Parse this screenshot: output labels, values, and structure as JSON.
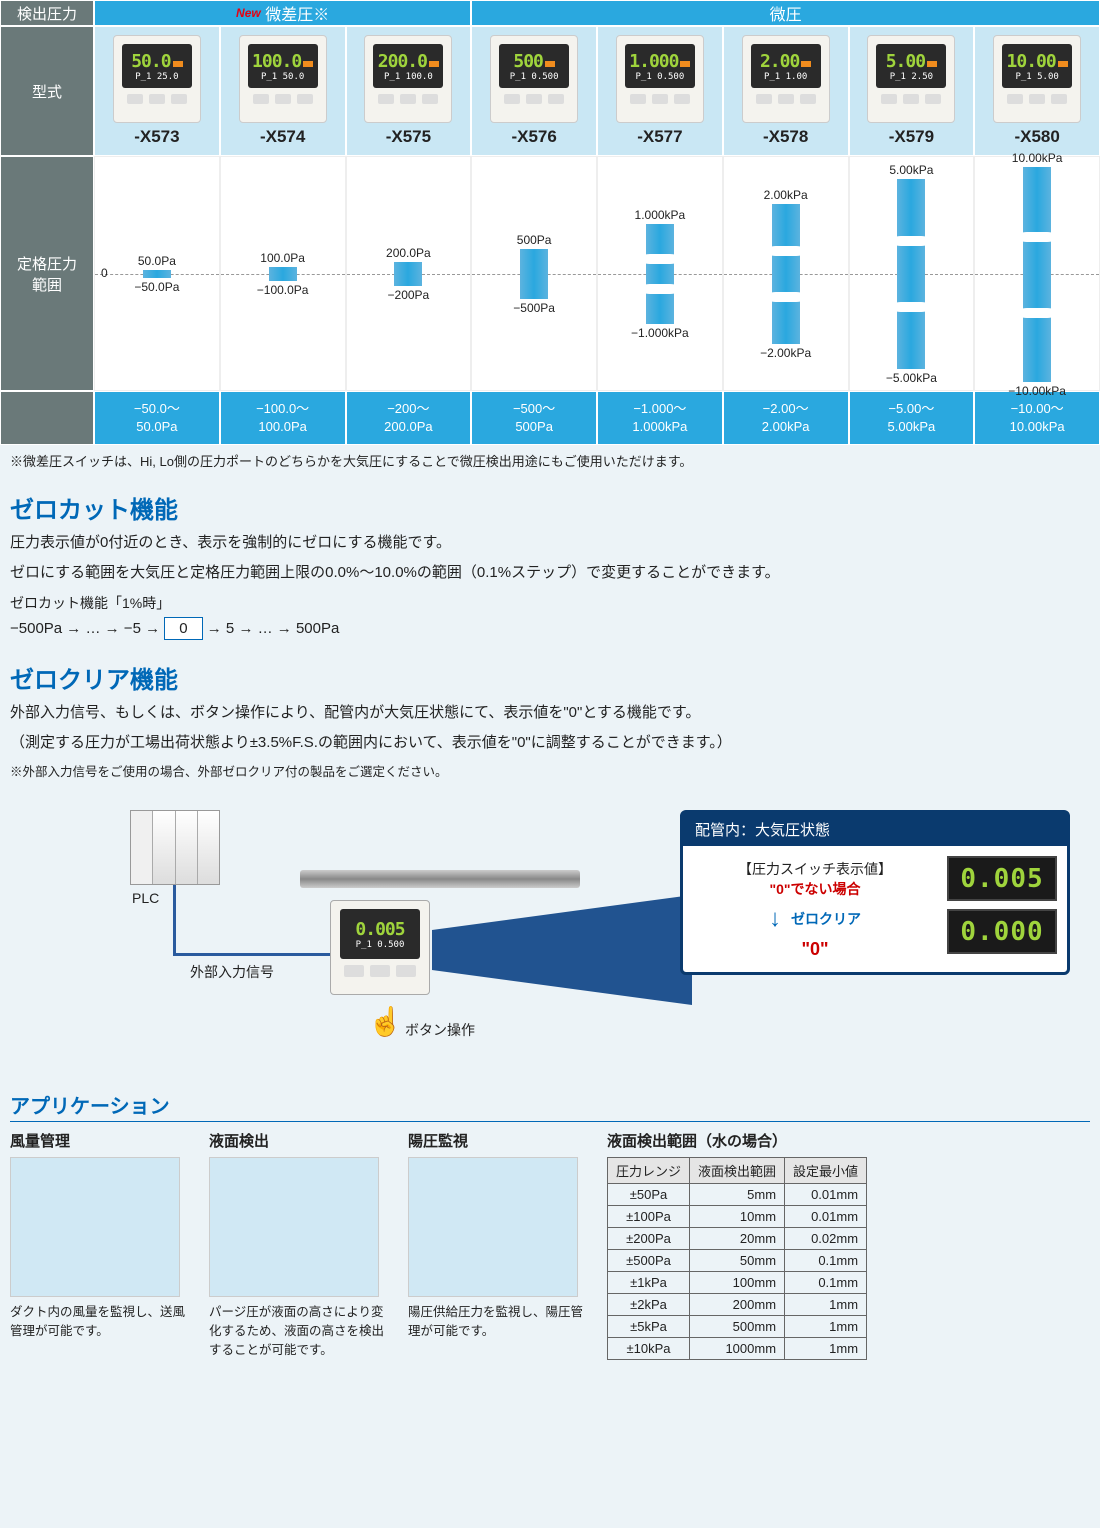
{
  "table": {
    "header_detect": "検出圧力",
    "header_diff": "微差圧※",
    "new_label": "New",
    "header_micro": "微圧",
    "header_model": "型式",
    "header_range": "定格圧力\n範囲",
    "zero_marker": "0",
    "models": [
      {
        "id": "-X573",
        "disp": "50.0",
        "sub": "P_1  25.0",
        "pos": "50.0Pa",
        "neg": "−50.0Pa",
        "bh": 8,
        "bt": 113,
        "rng1": "−50.0～",
        "rng2": "50.0Pa"
      },
      {
        "id": "-X574",
        "disp": "100.0",
        "sub": "P_1  50.0",
        "pos": "100.0Pa",
        "neg": "−100.0Pa",
        "bh": 14,
        "bt": 110,
        "rng1": "−100.0～",
        "rng2": "100.0Pa"
      },
      {
        "id": "-X575",
        "disp": "200.0",
        "sub": "P_1 100.0",
        "pos": "200.0Pa",
        "neg": "−200Pa",
        "bh": 24,
        "bt": 105,
        "rng1": "−200～",
        "rng2": "200.0Pa"
      },
      {
        "id": "-X576",
        "disp": "500",
        "sub": "P_1 0.500",
        "pos": "500Pa",
        "neg": "−500Pa",
        "bh": 50,
        "bt": 92,
        "rng1": "−500～",
        "rng2": "500Pa"
      },
      {
        "id": "-X577",
        "disp": "1.000",
        "sub": "P_1 0.500",
        "pos": "1.000kPa",
        "neg": "−1.000kPa",
        "bh": 100,
        "bt": 67,
        "rng1": "−1.000～",
        "rng2": "1.000kPa",
        "break": true
      },
      {
        "id": "-X578",
        "disp": "2.00",
        "sub": "P_1  1.00",
        "pos": "2.00kPa",
        "neg": "−2.00kPa",
        "bh": 140,
        "bt": 47,
        "rng1": "−2.00～",
        "rng2": "2.00kPa",
        "break": true
      },
      {
        "id": "-X579",
        "disp": "5.00",
        "sub": "P_1  2.50",
        "pos": "5.00kPa",
        "neg": "−5.00kPa",
        "bh": 190,
        "bt": 22,
        "rng1": "−5.00～",
        "rng2": "5.00kPa",
        "break": true
      },
      {
        "id": "-X580",
        "disp": "10.00",
        "sub": "P_1  5.00",
        "pos": "10.00kPa",
        "neg": "−10.00kPa",
        "bh": 215,
        "bt": 10,
        "rng1": "−10.00～",
        "rng2": "10.00kPa",
        "break": true
      }
    ],
    "footnote": "※微差圧スイッチは、Hi, Lo側の圧力ポートのどちらかを大気圧にすることで微圧検出用途にもご使用いただけます。"
  },
  "zero_cut": {
    "title": "ゼロカット機能",
    "p1": "圧力表示値が0付近のとき、表示を強制的にゼロにする機能です。",
    "p2": "ゼロにする範囲を大気圧と定格圧力範囲上限の0.0%～10.0%の範囲（0.1%ステップ）で変更することができます。",
    "ex_label": "ゼロカット機能「1%時」",
    "ex_l": "−500Pa → … → −5 → ",
    "ex_0": "0",
    "ex_r": " → 5 → … → 500Pa"
  },
  "zero_clear": {
    "title": "ゼロクリア機能",
    "p1": "外部入力信号、もしくは、ボタン操作により、配管内が大気圧状態にて、表示値を\"0\"とする機能です。",
    "p2": "（測定する圧力が工場出荷状態より±3.5%F.S.の範囲内において、表示値を\"0\"に調整することができます。）",
    "note": "※外部入力信号をご使用の場合、外部ゼロクリア付の製品をご選定ください。",
    "plc": "PLC",
    "sig": "外部入力信号",
    "btn_op": "ボタン操作",
    "sensor_main": "0.005",
    "sensor_sub": "P_1  0.500",
    "box_title": "配管内：大気圧状態",
    "box_h": "【圧力スイッチ表示値】",
    "not_zero": "\"0\"でない場合",
    "zc": "ゼロクリア",
    "is_zero": "\"0\"",
    "d1": "0.005",
    "d2": "0.000"
  },
  "apps": {
    "title": "アプリケーション",
    "cols": [
      {
        "h": "風量管理",
        "desc": "ダクト内の風量を監視し、送風管理が可能です。"
      },
      {
        "h": "液面検出",
        "desc": "パージ圧が液面の高さにより変化するため、液面の高さを検出することが可能です。"
      },
      {
        "h": "陽圧監視",
        "desc": "陽圧供給圧力を監視し、陽圧管理が可能です。"
      }
    ],
    "det_title": "液面検出範囲（水の場合）",
    "det_headers": [
      "圧力レンジ",
      "液面検出範囲",
      "設定最小値"
    ],
    "det_rows": [
      [
        "±50Pa",
        "5mm",
        "0.01mm"
      ],
      [
        "±100Pa",
        "10mm",
        "0.01mm"
      ],
      [
        "±200Pa",
        "20mm",
        "0.02mm"
      ],
      [
        "±500Pa",
        "50mm",
        "0.1mm"
      ],
      [
        "±1kPa",
        "100mm",
        "0.1mm"
      ],
      [
        "±2kPa",
        "200mm",
        "1mm"
      ],
      [
        "±5kPa",
        "500mm",
        "1mm"
      ],
      [
        "±10kPa",
        "1000mm",
        "1mm"
      ]
    ]
  },
  "colors": {
    "cyan": "#2aa8df",
    "darkh": "#6a7979",
    "blue": "#0068b7",
    "navy": "#0a3a6e",
    "green": "#9fd43c",
    "red": "#c00"
  }
}
